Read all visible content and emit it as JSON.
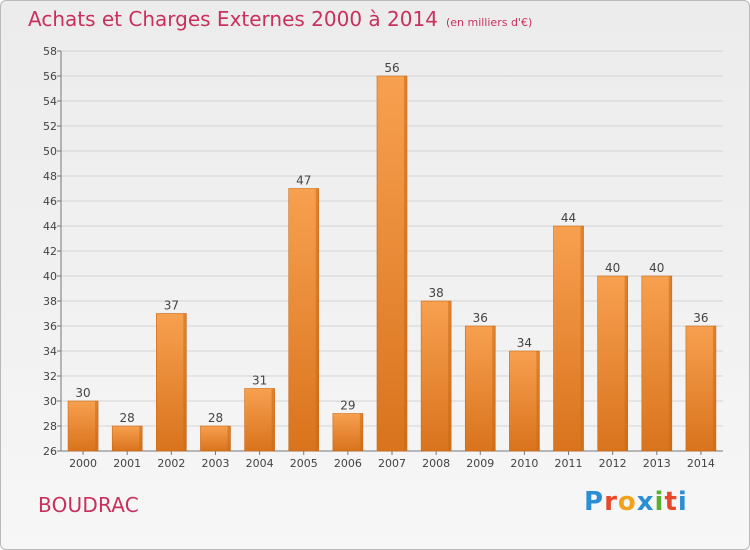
{
  "header": {
    "title": "Achats et Charges Externes 2000 à 2014",
    "unit": "(en milliers d'€)"
  },
  "commune": "BOUDRAC",
  "logo": {
    "letters": [
      "P",
      "r",
      "o",
      "x",
      "i",
      "t",
      "i"
    ],
    "colors": [
      "#2a8fd4",
      "#e8492a",
      "#f2a31c",
      "#2a8fd4",
      "#58b030",
      "#e8492a",
      "#2a8fd4"
    ]
  },
  "colors": {
    "bar_top": "#f7a04f",
    "bar_bottom": "#d9731d",
    "bar_edge": "#c86a18",
    "title": "#c9305e",
    "grid": "#d4d4d4"
  },
  "chart_data": {
    "type": "bar",
    "title": "Achats et Charges Externes 2000 à 2014",
    "categories": [
      "2000",
      "2001",
      "2002",
      "2003",
      "2004",
      "2005",
      "2006",
      "2007",
      "2008",
      "2009",
      "2010",
      "2011",
      "2012",
      "2013",
      "2014"
    ],
    "values": [
      30,
      28,
      37,
      28,
      31,
      47,
      29,
      56,
      38,
      36,
      34,
      44,
      40,
      40,
      36
    ],
    "ylim": [
      26,
      58
    ],
    "yticks": [
      26,
      28,
      30,
      32,
      34,
      36,
      38,
      40,
      42,
      44,
      46,
      48,
      50,
      52,
      54,
      56,
      58
    ],
    "grid": true,
    "data_labels": true
  }
}
